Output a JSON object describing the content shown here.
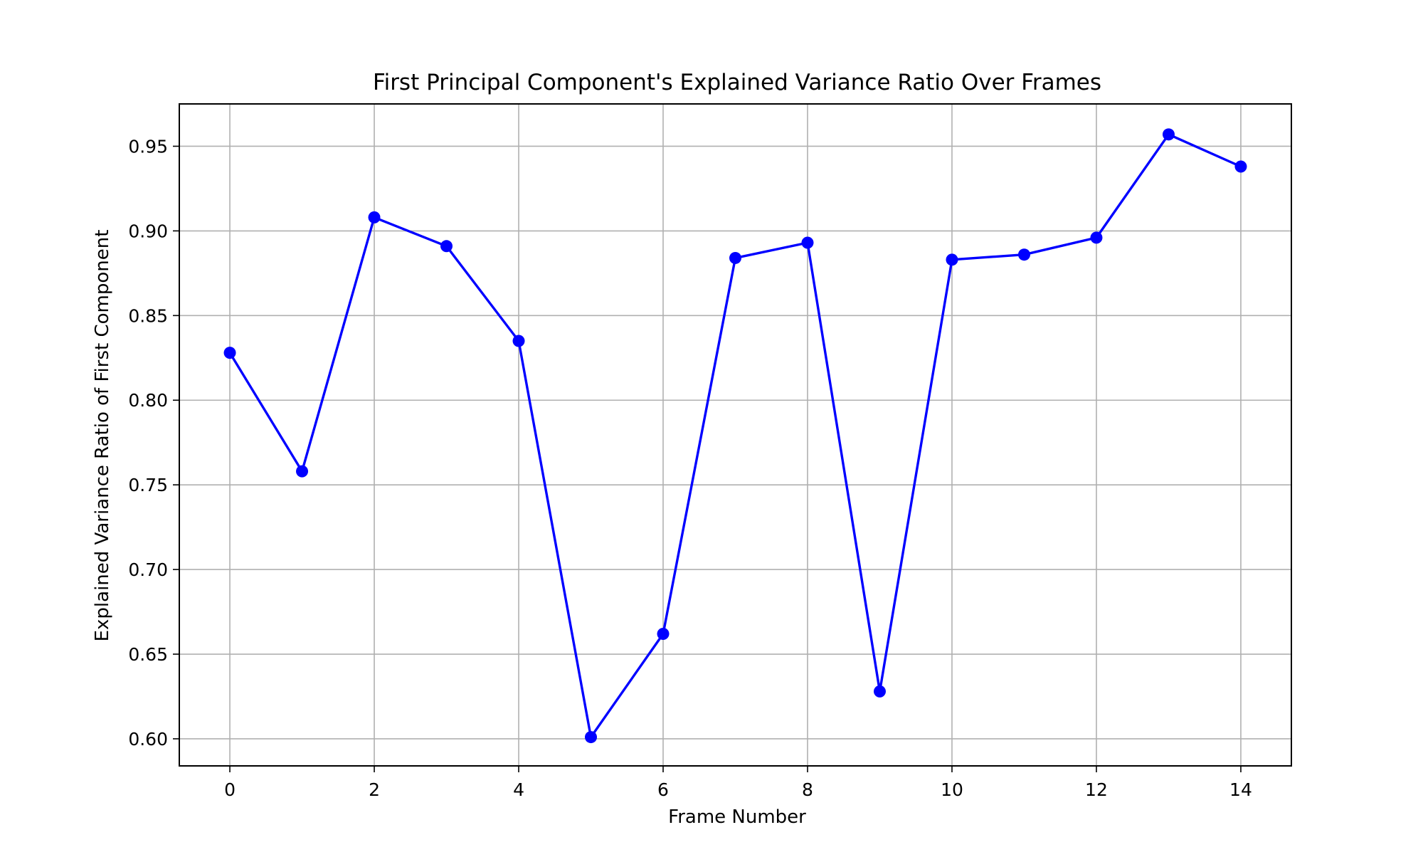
{
  "chart_data": {
    "type": "line",
    "title": "First Principal Component's Explained Variance Ratio Over Frames",
    "xlabel": "Frame Number",
    "ylabel": "Explained Variance Ratio of First Component",
    "xlim": [
      -0.7,
      14.7
    ],
    "ylim": [
      0.584,
      0.975
    ],
    "x_ticks": [
      0,
      2,
      4,
      6,
      8,
      10,
      12,
      14
    ],
    "y_ticks": [
      0.6,
      0.65,
      0.7,
      0.75,
      0.8,
      0.85,
      0.9,
      0.95
    ],
    "y_tick_labels": [
      "0.60",
      "0.65",
      "0.70",
      "0.75",
      "0.80",
      "0.85",
      "0.90",
      "0.95"
    ],
    "grid": true,
    "series": [
      {
        "color": "#0000ff",
        "marker": "circle",
        "x": [
          0,
          1,
          2,
          3,
          4,
          5,
          6,
          7,
          8,
          9,
          10,
          11,
          12,
          13,
          14
        ],
        "values": [
          0.828,
          0.758,
          0.908,
          0.891,
          0.835,
          0.601,
          0.662,
          0.884,
          0.893,
          0.628,
          0.883,
          0.886,
          0.896,
          0.957,
          0.938
        ]
      }
    ]
  }
}
